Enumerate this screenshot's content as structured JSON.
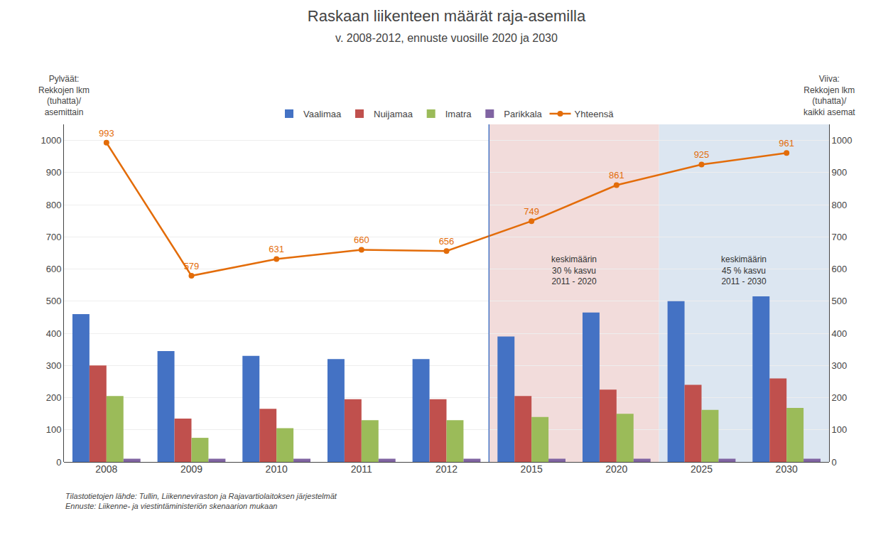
{
  "chart_data": {
    "type": "bar",
    "title": "Raskaan liikenteen määrät raja-asemilla",
    "subtitle": "v. 2008-2012, ennuste vuosille 2020 ja 2030",
    "ylabel": "Pylväät:\nRekkojen lkm\n(tuhatta)/\nasemittain",
    "y2label": "Viiva:\nRekkojen lkm\n(tuhatta)/\nkaikki asemat",
    "source": "Tilastotietojen lähde: Tullin, Liikenneviraston ja Rajavartiolaitoksen järjestelmät\nEnnuste: Liikenne- ja viestintäministeriön skenaarion mukaan",
    "categories": [
      "2008",
      "2009",
      "2010",
      "2011",
      "2012",
      "2015",
      "2020",
      "2025",
      "2030"
    ],
    "series": [
      {
        "name": "Vaalimaa",
        "color": "#4472C4",
        "values": [
          460,
          345,
          330,
          320,
          320,
          390,
          465,
          500,
          515
        ]
      },
      {
        "name": "Nuijamaa",
        "color": "#C0504D",
        "values": [
          300,
          135,
          165,
          195,
          195,
          205,
          225,
          240,
          260
        ]
      },
      {
        "name": "Imatra",
        "color": "#9BBB59",
        "values": [
          205,
          75,
          105,
          130,
          130,
          140,
          150,
          162,
          168
        ]
      },
      {
        "name": "Parikkala",
        "color": "#8064A2",
        "values": [
          10,
          10,
          10,
          10,
          10,
          10,
          10,
          10,
          10
        ]
      },
      {
        "name": "Yhteensä",
        "type": "line",
        "marker": "circle",
        "axis": "y2",
        "color": "#E36C09",
        "data_labels": true,
        "values": [
          993,
          579,
          631,
          660,
          656,
          749,
          861,
          925,
          961
        ]
      }
    ],
    "ylim": [
      0,
      1050
    ],
    "yticks": [
      0,
      100,
      200,
      300,
      400,
      500,
      600,
      700,
      800,
      900,
      1000
    ],
    "y2lim": [
      0,
      1050
    ],
    "y2ticks": [
      0,
      100,
      200,
      300,
      400,
      500,
      600,
      700,
      800,
      900,
      1000
    ],
    "grid": true,
    "legend": "top",
    "regions": [
      {
        "from": "2015",
        "to": "2020",
        "color": "#F2DCDB",
        "label": "keskimäärin\n30 % kasvu\n2011 - 2020"
      },
      {
        "from": "2025",
        "to": "2030",
        "color": "#DCE6F1",
        "label": "keskimäärin\n45 % kasvu\n2011 - 2030"
      }
    ],
    "separator": {
      "before": "2015",
      "color": "#4472C4"
    }
  }
}
